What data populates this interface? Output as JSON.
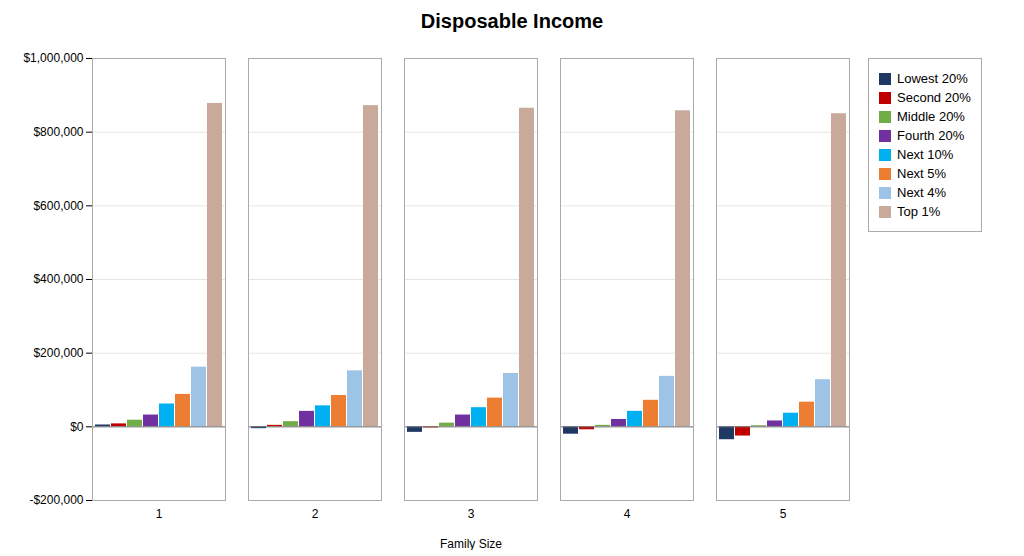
{
  "chart_data": {
    "type": "bar",
    "title": "Disposable Income",
    "xlabel": "Family Size",
    "categories": [
      1,
      2,
      3,
      4,
      5
    ],
    "series": [
      {
        "name": "Lowest 20%",
        "color": "#1F3864",
        "values": [
          5000,
          -5000,
          -15000,
          -20000,
          -35000
        ]
      },
      {
        "name": "Second 20%",
        "color": "#C00000",
        "values": [
          8000,
          4000,
          -3000,
          -8000,
          -25000
        ]
      },
      {
        "name": "Middle 20%",
        "color": "#70AD47",
        "values": [
          18000,
          14000,
          10000,
          4000,
          3000
        ]
      },
      {
        "name": "Fourth 20%",
        "color": "#7030A0",
        "values": [
          32000,
          42000,
          32000,
          20000,
          16000
        ]
      },
      {
        "name": "Next 10%",
        "color": "#00B0F0",
        "values": [
          62000,
          57000,
          52000,
          42000,
          37000
        ]
      },
      {
        "name": "Next 5%",
        "color": "#ED7D31",
        "values": [
          88000,
          85000,
          78000,
          72000,
          67000
        ]
      },
      {
        "name": "Next 4%",
        "color": "#9DC3E6",
        "values": [
          162000,
          152000,
          145000,
          137000,
          128000
        ]
      },
      {
        "name": "Top 1%",
        "color": "#C9A99A",
        "values": [
          878000,
          872000,
          865000,
          858000,
          850000
        ]
      }
    ],
    "ylim": [
      -200000,
      1000000
    ],
    "yticks": [
      {
        "value": -200000,
        "label": "-$200,000"
      },
      {
        "value": 0,
        "label": "$0"
      },
      {
        "value": 200000,
        "label": "$200,000"
      },
      {
        "value": 400000,
        "label": "$400,000"
      },
      {
        "value": 600000,
        "label": "$600,000"
      },
      {
        "value": 800000,
        "label": "$800,000"
      },
      {
        "value": 1000000,
        "label": "$1,000,000"
      }
    ],
    "grid": true,
    "legend": "right"
  }
}
